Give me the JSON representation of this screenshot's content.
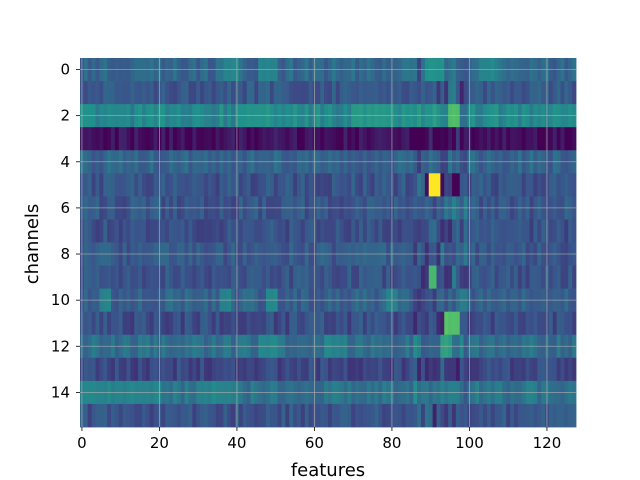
{
  "chart_data": {
    "type": "heatmap",
    "title": "",
    "xlabel": "features",
    "ylabel": "channels",
    "x_range": [
      0,
      127
    ],
    "y_range": [
      0,
      15
    ],
    "y_axis_inverted": true,
    "xticks": [
      0,
      20,
      40,
      60,
      80,
      100,
      120
    ],
    "yticks": [
      0,
      2,
      4,
      6,
      8,
      10,
      12,
      14
    ],
    "grid": true,
    "colormap": "viridis",
    "colormap_stops": [
      "#440154",
      "#3b528b",
      "#21918c",
      "#5ec962",
      "#fde725"
    ],
    "value_range": [
      0,
      1
    ],
    "n_channels": 16,
    "n_features": 128,
    "row_baseline": [
      0.33,
      0.28,
      0.46,
      0.04,
      0.32,
      0.26,
      0.27,
      0.25,
      0.28,
      0.26,
      0.31,
      0.24,
      0.36,
      0.22,
      0.38,
      0.26
    ],
    "features_of_note": [
      {
        "channel": 0,
        "features": [
          89,
          90,
          91,
          92,
          93
        ],
        "value": 0.5
      },
      {
        "channel": 0,
        "features": [
          103,
          104,
          105,
          106,
          107
        ],
        "value": 0.45
      },
      {
        "channel": 0,
        "features": [
          37,
          38,
          39,
          40,
          46,
          47,
          48,
          49,
          50
        ],
        "value": 0.45
      },
      {
        "channel": 2,
        "features": [
          95,
          96,
          97
        ],
        "value": 0.7
      },
      {
        "channel": 2,
        "features": [
          40,
          41,
          42,
          43,
          44,
          45,
          46,
          47,
          48,
          70,
          71,
          72,
          73,
          74,
          75,
          76,
          77,
          78,
          79,
          80
        ],
        "value": 0.52
      },
      {
        "channel": 5,
        "features": [
          90,
          91,
          92
        ],
        "value": 1.0
      },
      {
        "channel": 5,
        "features": [
          89,
          93,
          96,
          97
        ],
        "value": 0.02
      },
      {
        "channel": 9,
        "features": [
          90,
          91
        ],
        "value": 0.68
      },
      {
        "channel": 10,
        "features": [
          5,
          6,
          7,
          36,
          37,
          38,
          48,
          49,
          50,
          79,
          80,
          81
        ],
        "value": 0.45
      },
      {
        "channel": 11,
        "features": [
          94,
          95,
          96,
          97
        ],
        "value": 0.72
      },
      {
        "channel": 12,
        "features": [
          93,
          94,
          95
        ],
        "value": 0.55
      },
      {
        "channel": 12,
        "features": [
          46,
          47,
          48,
          49,
          50,
          63,
          64,
          65,
          66,
          67,
          68
        ],
        "value": 0.45
      },
      {
        "channel": 14,
        "features": [
          0,
          1,
          2,
          3,
          4,
          5,
          6,
          7,
          8,
          9,
          10,
          11,
          12,
          13,
          14,
          15,
          16,
          17,
          18,
          19,
          20,
          30,
          31,
          32,
          33,
          34,
          35,
          36,
          37,
          38,
          39,
          40,
          95,
          96,
          97
        ],
        "value": 0.45
      }
    ]
  }
}
